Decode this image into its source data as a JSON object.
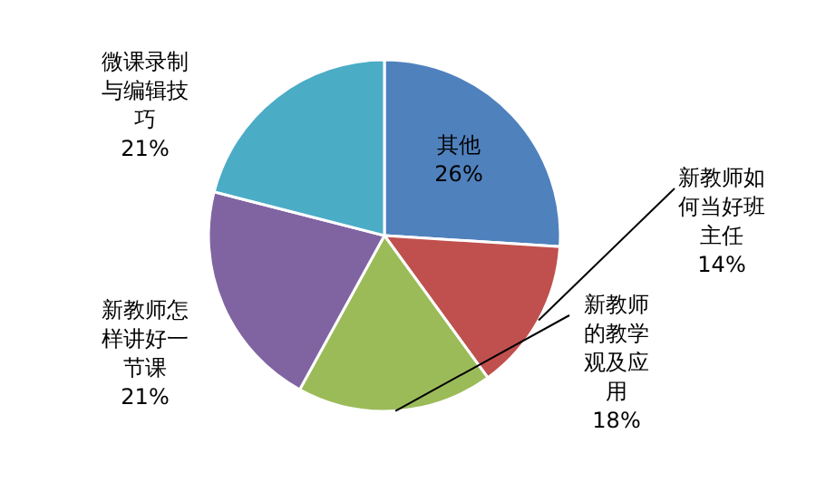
{
  "chart_data": {
    "type": "pie",
    "categories": [
      "其他",
      "新教师如何当好班主任",
      "新教师的教学观及应用",
      "新教师怎样讲好一节课",
      "微课录制与编辑技巧"
    ],
    "values": [
      26,
      14,
      18,
      21,
      21
    ],
    "colors": [
      "#4f81bd",
      "#c0504d",
      "#9bbb59",
      "#8064a2",
      "#4bacc6"
    ],
    "value_labels": [
      "26%",
      "14%",
      "18%",
      "21%",
      "21%"
    ]
  }
}
